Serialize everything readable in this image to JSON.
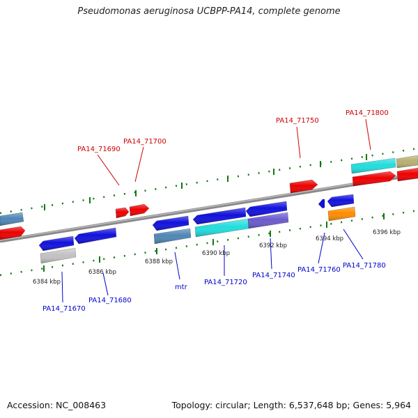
{
  "title": "Pseudomonas aeruginosa UCBPP-PA14, complete genome",
  "footer": {
    "accession": "Accession: NC_008463",
    "topology": "Topology: circular; Length: 6,537,648 bp; Genes: 5,964"
  },
  "ruler_labels": [
    "6384 kbp",
    "6386 kbp",
    "6388 kbp",
    "6390 kbp",
    "6392 kbp",
    "6394 kbp",
    "6396 kbp"
  ],
  "gene_labels": {
    "forward": [
      "PA14_71690",
      "PA14_71700",
      "PA14_71750",
      "PA14_71800"
    ],
    "reverse": [
      "PA14_71670",
      "PA14_71680",
      "mtr",
      "PA14_71720",
      "PA14_71740",
      "PA14_71760",
      "PA14_71780"
    ]
  },
  "colors": {
    "forward_label": "#cc0000",
    "reverse_label": "#0000cc",
    "red": "#ee0000",
    "blue": "#1111dd",
    "cyan": "#22dddd",
    "steel": "#4f86b5",
    "olive": "#b8b070",
    "purple": "#6a5acd",
    "orange": "#ff8c00",
    "silver": "#c2c2c2",
    "tick": "#117711",
    "backbone": "#888888"
  }
}
